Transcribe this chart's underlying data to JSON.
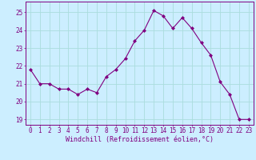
{
  "x": [
    0,
    1,
    2,
    3,
    4,
    5,
    6,
    7,
    8,
    9,
    10,
    11,
    12,
    13,
    14,
    15,
    16,
    17,
    18,
    19,
    20,
    21,
    22,
    23
  ],
  "y": [
    21.8,
    21.0,
    21.0,
    20.7,
    20.7,
    20.4,
    20.7,
    20.5,
    21.4,
    21.8,
    22.4,
    23.4,
    24.0,
    25.1,
    24.8,
    24.1,
    24.7,
    24.1,
    23.3,
    22.6,
    21.1,
    20.4,
    19.0,
    19.0
  ],
  "line_color": "#800080",
  "marker": "D",
  "marker_size": 2.0,
  "bg_color": "#cceeff",
  "grid_color": "#aadddd",
  "xlabel": "Windchill (Refroidissement éolien,°C)",
  "ylim": [
    18.7,
    25.6
  ],
  "xlim": [
    -0.5,
    23.5
  ],
  "yticks": [
    19,
    20,
    21,
    22,
    23,
    24,
    25
  ],
  "xticks": [
    0,
    1,
    2,
    3,
    4,
    5,
    6,
    7,
    8,
    9,
    10,
    11,
    12,
    13,
    14,
    15,
    16,
    17,
    18,
    19,
    20,
    21,
    22,
    23
  ],
  "tick_color": "#800080",
  "tick_fontsize": 5.5,
  "label_fontsize": 6.0,
  "spine_color": "#800080"
}
